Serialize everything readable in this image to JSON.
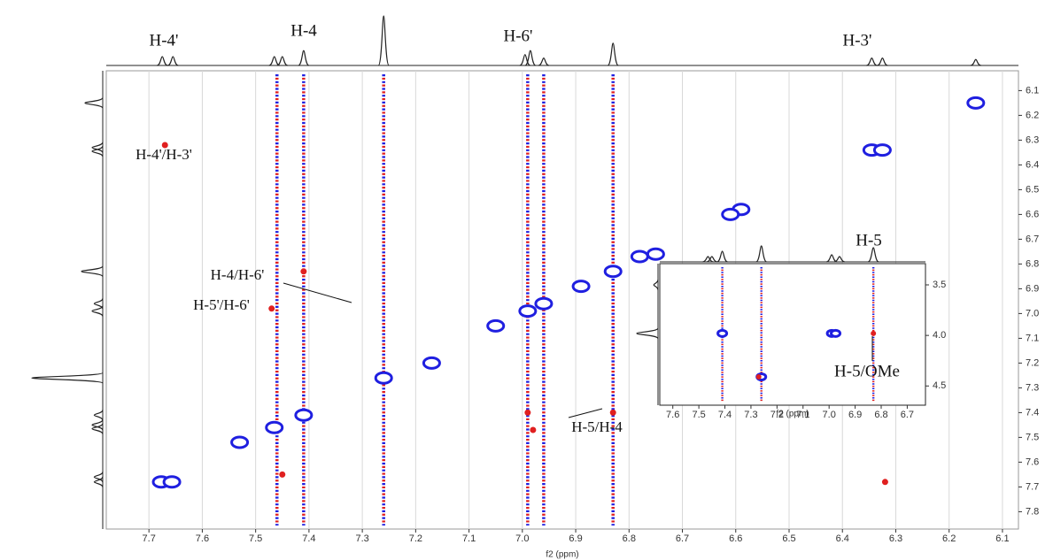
{
  "chart_data": [
    {
      "type": "nmr2d",
      "x_label": "f2 (ppm)",
      "xlim": [
        7.78,
        6.07
      ],
      "ylim": [
        6.02,
        7.87
      ],
      "xticks": [
        7.7,
        7.6,
        7.5,
        7.4,
        7.3,
        7.2,
        7.1,
        {
          "value": 7,
          "label": "7.0"
        },
        6.9,
        6.8,
        6.7,
        6.6,
        6.5,
        6.4,
        6.3,
        6.2,
        6.1
      ],
      "yticks": [
        6.1,
        6.2,
        6.3,
        6.4,
        6.5,
        6.6,
        6.7,
        6.8,
        6.9,
        {
          "value": 7,
          "label": "7.0"
        },
        7.1,
        7.2,
        7.3,
        7.4,
        7.5,
        7.6,
        7.7,
        7.8
      ],
      "grid": true,
      "top_projection": {
        "x": [
          7.675,
          7.655,
          7.465,
          7.45,
          7.41,
          7.26,
          6.995,
          6.985,
          6.96,
          6.83,
          6.345,
          6.325,
          6.15
        ],
        "heights": [
          0.18,
          0.18,
          0.18,
          0.18,
          0.3,
          1.0,
          0.22,
          0.3,
          0.15,
          0.45,
          0.15,
          0.15,
          0.12
        ]
      },
      "left_projection": {
        "y": [
          6.15,
          6.33,
          6.345,
          6.83,
          6.96,
          6.99,
          7.26,
          7.41,
          7.45,
          7.465,
          7.66,
          7.68
        ],
        "heights": [
          0.25,
          0.15,
          0.15,
          0.3,
          0.12,
          0.15,
          1.0,
          0.12,
          0.15,
          0.15,
          0.12,
          0.12
        ]
      },
      "streaks": {
        "x": [
          7.46,
          7.41,
          7.26,
          6.99,
          6.96,
          6.83
        ]
      },
      "peaks": [
        {
          "color": "#1f1fe0",
          "x": [
            7.677,
            7.657,
            7.465,
            7.41,
            7.26,
            6.99,
            6.96,
            6.83,
            6.345,
            6.325,
            6.15,
            6.59,
            6.61,
            6.89,
            7.05,
            6.78,
            6.75,
            7.53,
            7.17
          ],
          "y": [
            7.68,
            7.68,
            7.46,
            7.41,
            7.26,
            6.99,
            6.96,
            6.83,
            6.34,
            6.34,
            6.15,
            6.58,
            6.6,
            6.89,
            7.05,
            6.77,
            6.76,
            7.52,
            7.2
          ]
        },
        {
          "color": "#e02020",
          "x": [
            7.67,
            7.41,
            7.47,
            6.99,
            6.98,
            6.83,
            6.32,
            7.45
          ],
          "y": [
            6.32,
            6.83,
            6.98,
            7.4,
            7.47,
            7.4,
            7.68,
            7.65
          ]
        }
      ],
      "annotations": [
        "H-4'",
        "H-4",
        "H-6'",
        "H-3'",
        "H-4'/H-3'",
        "H-4/H-6'",
        "H-5'/H-6'",
        "H-5/H-4"
      ]
    },
    {
      "type": "nmr2d",
      "x_label": "f2 (ppm)",
      "xlim": [
        7.65,
        6.63
      ],
      "ylim": [
        3.29,
        4.69
      ],
      "xticks": [
        7.6,
        7.5,
        7.4,
        7.3,
        7.2,
        7.1,
        {
          "value": 7,
          "label": "7.0"
        },
        6.9,
        6.8,
        6.7
      ],
      "yticks": [
        3.5,
        {
          "value": 4,
          "label": "4.0"
        },
        4.5
      ],
      "grid": false,
      "top_projection": {
        "x": [
          7.465,
          7.45,
          7.41,
          7.26,
          6.99,
          6.96,
          6.83
        ],
        "heights": [
          0.3,
          0.3,
          0.6,
          0.9,
          0.4,
          0.3,
          0.8
        ]
      },
      "left_projection": {
        "y": [
          3.5,
          3.98
        ],
        "heights": [
          0.2,
          1.0
        ]
      },
      "streaks": {
        "x": [
          7.41,
          7.26,
          6.83
        ]
      },
      "peaks": [
        {
          "color": "#1f1fe0",
          "x": [
            7.41,
            6.99,
            6.975,
            7.26
          ],
          "y": [
            3.98,
            3.98,
            3.98,
            4.41
          ]
        },
        {
          "color": "#e02020",
          "x": [
            6.83,
            7.27
          ],
          "y": [
            3.98,
            4.41
          ]
        }
      ],
      "annotations": [
        "H-5",
        "H-5/OMe"
      ]
    }
  ]
}
